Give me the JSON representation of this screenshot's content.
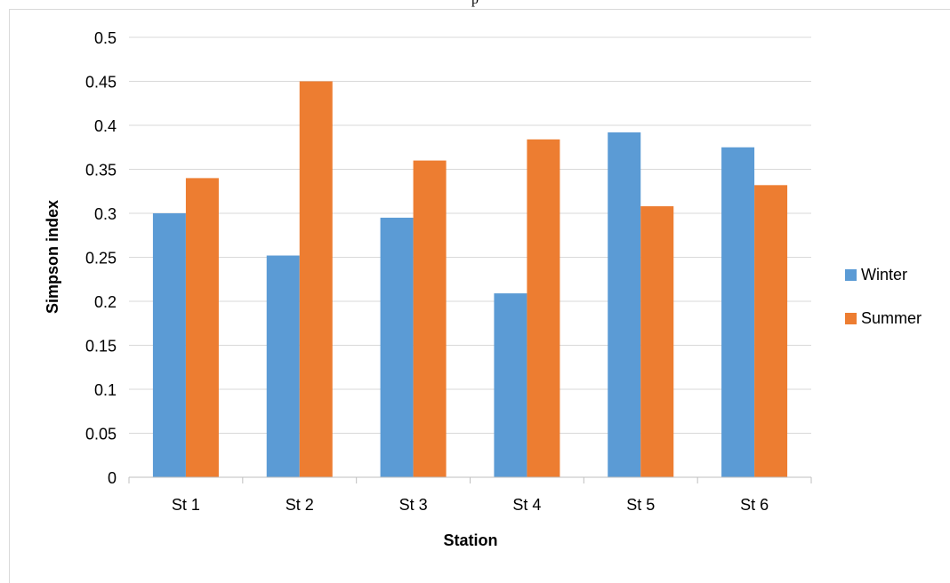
{
  "top_fragment": "p",
  "chart_data": {
    "type": "bar",
    "title": "",
    "xlabel": "Station",
    "ylabel": "Simpson index",
    "categories": [
      "St 1",
      "St 2",
      "St 3",
      "St 4",
      "St 5",
      "St 6"
    ],
    "ylim": [
      0,
      0.5
    ],
    "yticks": [
      "0",
      "0.05",
      "0.1",
      "0.15",
      "0.2",
      "0.25",
      "0.3",
      "0.35",
      "0.4",
      "0.45",
      "0.5"
    ],
    "grid": true,
    "legend_position": "right",
    "series": [
      {
        "name": "Winter",
        "color": "#5b9bd5",
        "values": [
          0.3,
          0.252,
          0.295,
          0.209,
          0.392,
          0.375
        ]
      },
      {
        "name": "Summer",
        "color": "#ed7d31",
        "values": [
          0.34,
          0.45,
          0.36,
          0.384,
          0.308,
          0.332
        ]
      }
    ]
  }
}
